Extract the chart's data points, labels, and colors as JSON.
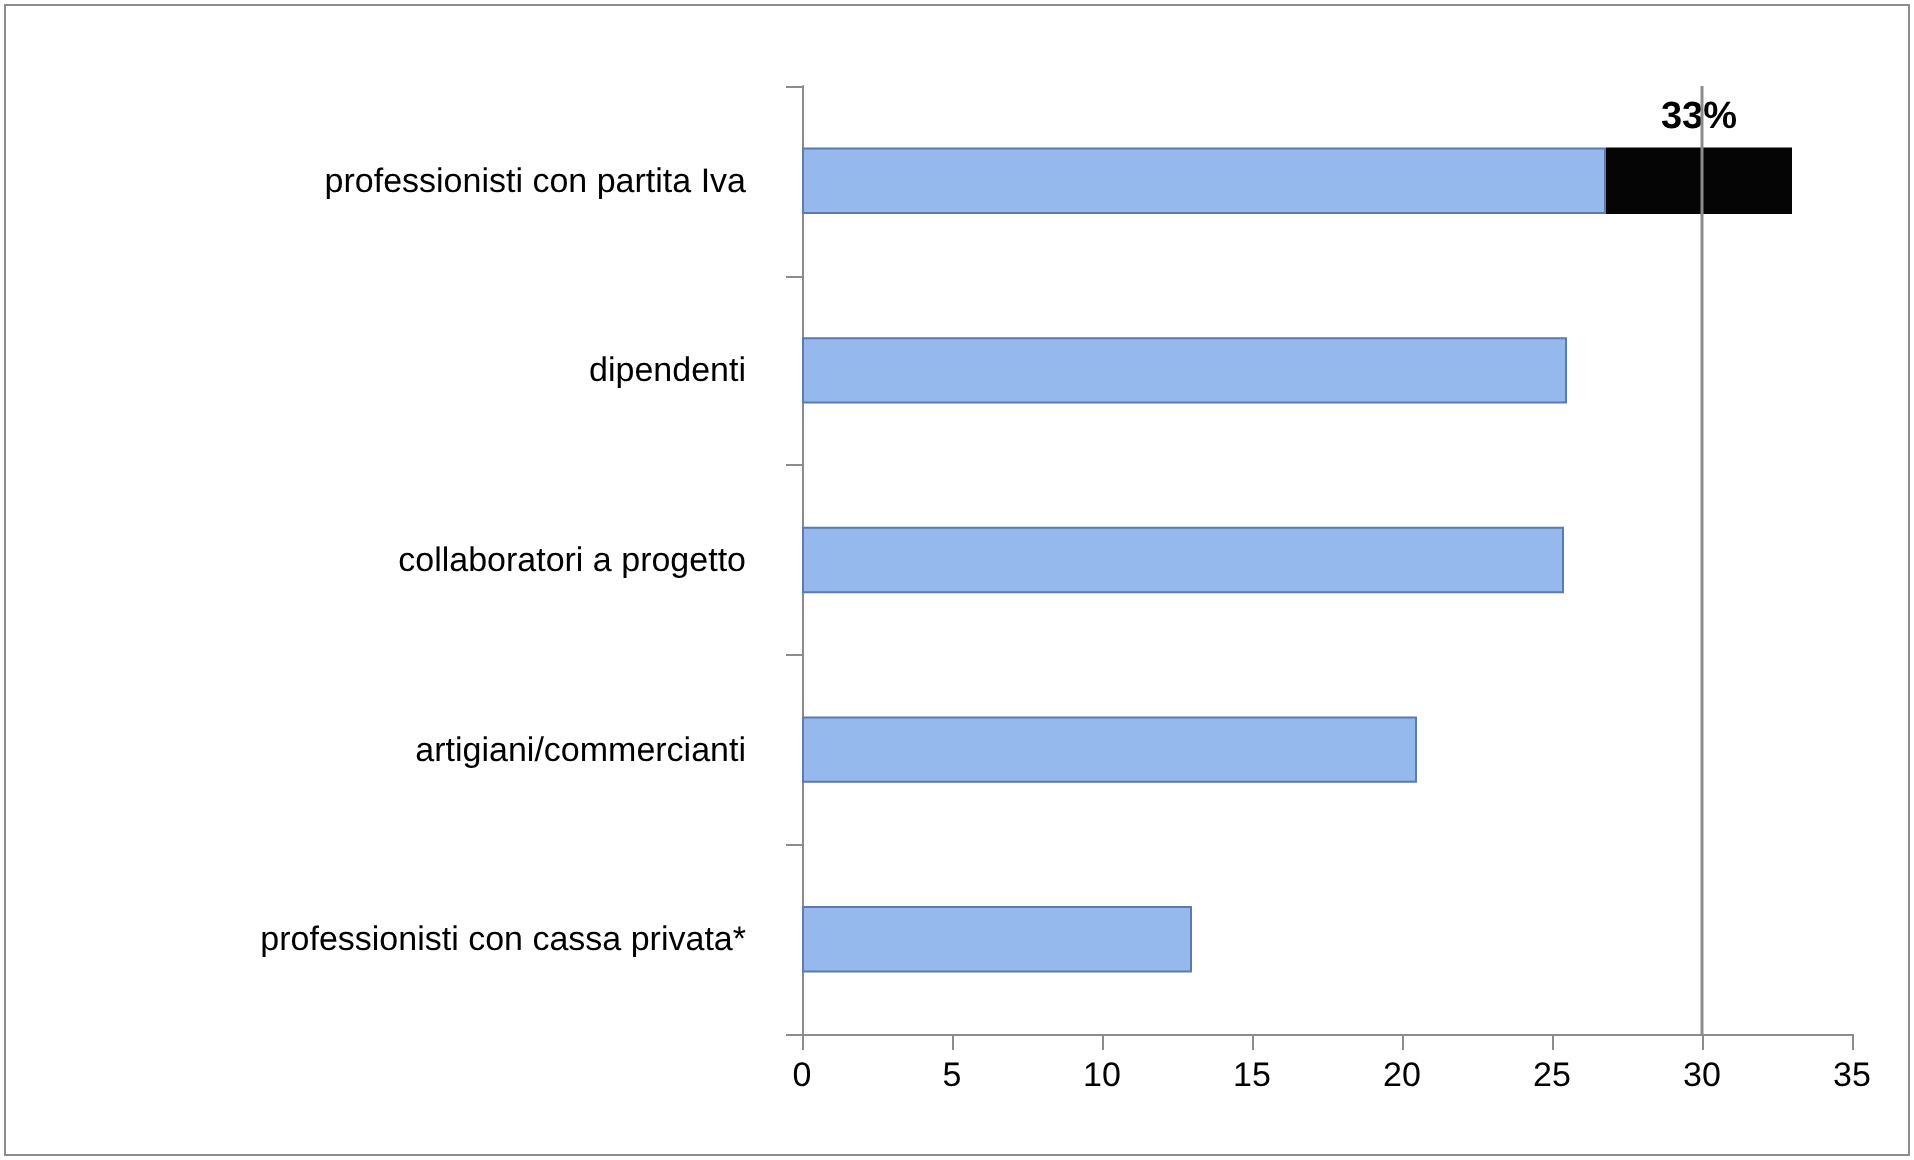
{
  "chart_data": {
    "type": "bar",
    "orientation": "horizontal",
    "stacked": true,
    "categories": [
      "professionisti con partita Iva",
      "dipendenti",
      "collaboratori a progetto",
      "artigiani/commercianti",
      "professionisti con cassa privata*"
    ],
    "series": [
      {
        "color": "#95b9ed",
        "values": [
          26.8,
          25.5,
          25.4,
          20.5,
          13.0
        ]
      },
      {
        "color": "#050505",
        "values": [
          6.2,
          null,
          null,
          null,
          null
        ]
      }
    ],
    "totals": [
      "33%",
      null,
      null,
      null,
      null
    ],
    "xlim": [
      0,
      35
    ],
    "xticks": [
      0,
      5,
      10,
      15,
      20,
      25,
      30,
      35
    ],
    "ref_lines": [
      {
        "axis": "x",
        "value": 30,
        "label": null,
        "color": "#8c8c8c"
      }
    ],
    "grid": false
  }
}
